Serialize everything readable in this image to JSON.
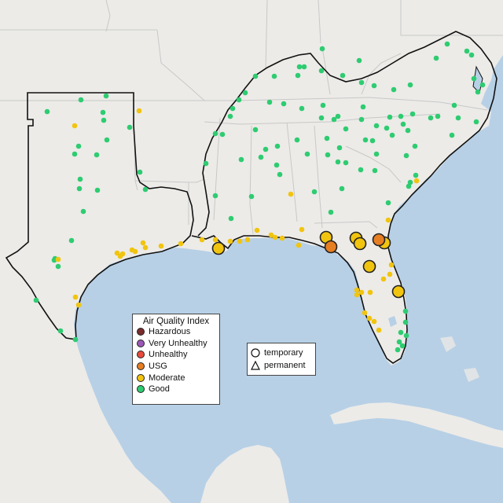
{
  "colors": {
    "hazardous": "#7a2d2d",
    "very_unhealthy": "#9b59b6",
    "unhealthy": "#e74c3c",
    "usg": "#e67e22",
    "moderate": "#f1c40f",
    "good": "#2ecc71",
    "ocean": "#b7d0e6",
    "land": "#ecebe8",
    "land_south": "#e0dfdb"
  },
  "aqi_legend": {
    "title": "Air Quality Index",
    "items": [
      {
        "key": "hazardous",
        "label": "Hazardous"
      },
      {
        "key": "very_unhealthy",
        "label": "Very Unhealthy"
      },
      {
        "key": "unhealthy",
        "label": "Unhealthy"
      },
      {
        "key": "usg",
        "label": "USG"
      },
      {
        "key": "moderate",
        "label": "Moderate"
      },
      {
        "key": "good",
        "label": "Good"
      }
    ]
  },
  "type_legend": {
    "temporary": "temporary",
    "permanent": "permanent"
  }
}
